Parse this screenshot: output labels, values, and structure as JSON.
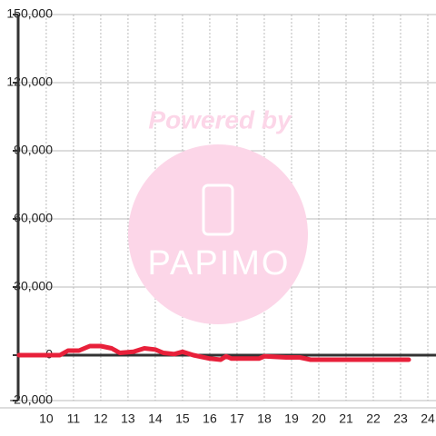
{
  "chart_data": {
    "type": "line",
    "watermark": {
      "line1": "Powered by",
      "line2": "PAPIMO"
    },
    "series": [
      {
        "color": "#e8203a",
        "x": [
          9,
          10.5,
          10.8,
          11.2,
          11.6,
          12,
          12.4,
          12.7,
          13.2,
          13.6,
          14,
          14.3,
          14.7,
          15,
          15.4,
          16,
          16.4,
          16.6,
          16.8,
          17.8,
          18,
          18.8,
          19.3,
          19.7,
          23.3
        ],
        "values": [
          0,
          0,
          2000,
          2000,
          4000,
          4000,
          3000,
          1000,
          1500,
          3000,
          2500,
          1000,
          500,
          1500,
          0,
          -1500,
          -2000,
          -500,
          -1500,
          -1500,
          -500,
          -1000,
          -1000,
          -2000,
          -2000
        ]
      }
    ],
    "xlim": [
      8.97,
      24.3
    ],
    "xticks": [
      10,
      11,
      12,
      13,
      14,
      15,
      16,
      17,
      18,
      19,
      20,
      21,
      22,
      23,
      24
    ],
    "ylim": [
      -20000,
      150000
    ],
    "yticks": [
      {
        "value": -20000,
        "label": "-20,000"
      },
      0,
      {
        "value": 30000,
        "label": "30,000"
      },
      {
        "value": 60000,
        "label": "60,000"
      },
      {
        "value": 90000,
        "label": "90,000"
      },
      {
        "value": 120000,
        "label": "120,000"
      },
      {
        "value": 150000,
        "label": "150,000"
      }
    ],
    "grid": true
  }
}
